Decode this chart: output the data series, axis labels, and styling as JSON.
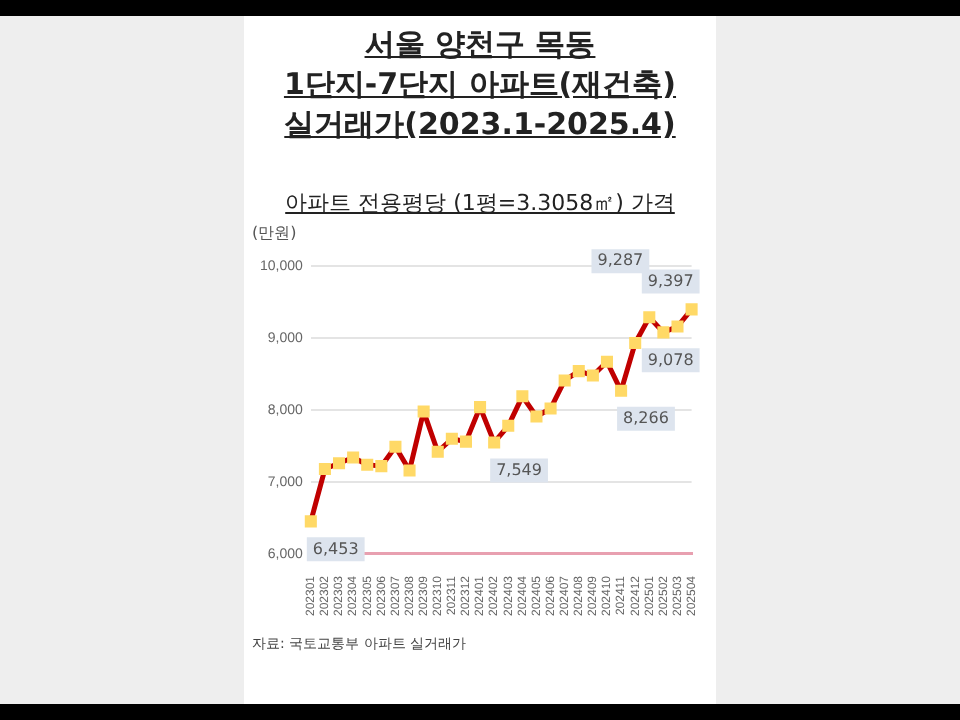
{
  "chart_data": {
    "type": "line",
    "title": "서울 양천구 목동\n1단지-7단지 아파트(재건축)\n실거래가(2023.1-2025.4)",
    "subtitle": "아파트 전용평당 (1평=3.3058㎡) 가격",
    "ylabel": "(만원)",
    "categories": [
      "202301",
      "202302",
      "202303",
      "202304",
      "202305",
      "202306",
      "202307",
      "202308",
      "202309",
      "202310",
      "202311",
      "202312",
      "202401",
      "202402",
      "202403",
      "202404",
      "202405",
      "202406",
      "202407",
      "202408",
      "202409",
      "202410",
      "202411",
      "202412",
      "202501",
      "202502",
      "202503",
      "202504"
    ],
    "series": [
      {
        "color": "#c00000",
        "values": [
          6453,
          7180,
          7260,
          7340,
          7240,
          7220,
          7490,
          7160,
          7980,
          7420,
          7600,
          7560,
          8040,
          7549,
          7780,
          8190,
          7910,
          8020,
          8410,
          8540,
          8480,
          8670,
          8266,
          8930,
          9287,
          9078,
          9160,
          9397
        ],
        "value_labels": [
          "6,453",
          null,
          null,
          null,
          null,
          null,
          null,
          null,
          null,
          null,
          null,
          null,
          null,
          "7,549",
          null,
          null,
          null,
          null,
          null,
          null,
          null,
          null,
          "8,266",
          null,
          "9,287",
          "9,078",
          null,
          "9,397"
        ]
      }
    ],
    "marker": "square",
    "line_style": "solid",
    "ylim": [
      6000,
      10000
    ],
    "yticks": [
      {
        "value": 6000,
        "label": "6,000"
      },
      {
        "value": 7000,
        "label": "7,000"
      },
      {
        "value": 8000,
        "label": "8,000"
      },
      {
        "value": 9000,
        "label": "9,000"
      },
      {
        "value": 10000,
        "label": "10,000"
      }
    ],
    "grid": "y",
    "legend": false,
    "annotations": [
      "자료: 국토교통부 아파트 실거래가"
    ]
  }
}
